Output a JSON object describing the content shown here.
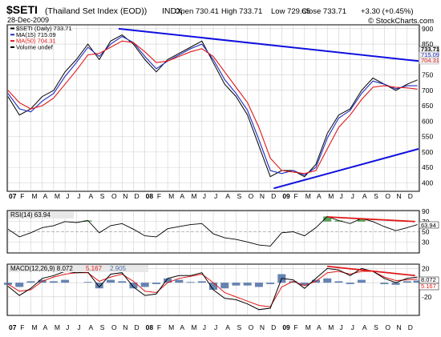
{
  "header": {
    "symbol": "$SETI",
    "name": "(Thailand Set Index (EOD))",
    "exchange": "INDX",
    "date": "28-Dec-2009",
    "brand": "© StockCharts.com",
    "ohlc": [
      {
        "label": "Open",
        "value": "730.41"
      },
      {
        "label": "High",
        "value": "733.71"
      },
      {
        "label": "Low",
        "value": "729.65"
      },
      {
        "label": "Close",
        "value": "733.71"
      },
      {
        "label": "Chg",
        "value": "+3.30 (+0.45%)"
      }
    ]
  },
  "colors": {
    "price": "#000000",
    "ma15": "#1f2fbf",
    "ma50": "#e01818",
    "trendline": "#1010e0",
    "divergence": "#e01818",
    "rsi_fill": "#2e8b2e",
    "macd_hist": "#4a6fa5",
    "grid": "#cfcfcf",
    "label_box": "#e8e8e8"
  },
  "chart_data": [
    {
      "type": "line",
      "panel": "price",
      "legend": [
        "$SETI (Daily) 733.71",
        "MA(15) 715.09",
        "MA(50) 704.31",
        "Volume undef"
      ],
      "ylim": [
        375,
        910
      ],
      "yticks": [
        400,
        450,
        500,
        550,
        600,
        650,
        700,
        750,
        800,
        850,
        900
      ],
      "last_value_labels": [
        "733.71",
        "715.09",
        "704.31"
      ],
      "x_month_labels": [
        "07",
        "F",
        "M",
        "A",
        "M",
        "J",
        "J",
        "A",
        "S",
        "O",
        "N",
        "D",
        "08",
        "F",
        "M",
        "A",
        "M",
        "J",
        "J",
        "A",
        "S",
        "O",
        "N",
        "D",
        "09",
        "F",
        "M",
        "A",
        "M",
        "J",
        "J",
        "A",
        "S",
        "O",
        "N",
        "D"
      ],
      "series": [
        {
          "name": "$SETI (Daily)",
          "x": [
            0,
            1,
            2,
            3,
            4,
            5,
            6,
            7,
            8,
            9,
            10,
            11,
            12,
            13,
            14,
            15,
            16,
            17,
            18,
            19,
            20,
            21,
            22,
            23,
            24,
            25,
            26,
            27,
            28,
            29,
            30,
            31,
            32,
            33,
            34,
            35,
            35.9
          ],
          "values": [
            680,
            620,
            640,
            680,
            700,
            760,
            800,
            850,
            800,
            860,
            880,
            850,
            800,
            760,
            800,
            820,
            840,
            860,
            790,
            720,
            680,
            620,
            520,
            420,
            440,
            440,
            420,
            460,
            560,
            620,
            640,
            700,
            740,
            720,
            700,
            720,
            734
          ]
        },
        {
          "name": "MA(15)",
          "x": [
            0,
            1,
            2,
            3,
            4,
            5,
            6,
            7,
            8,
            9,
            10,
            11,
            12,
            13,
            14,
            15,
            16,
            17,
            18,
            19,
            20,
            21,
            22,
            23,
            24,
            25,
            26,
            27,
            28,
            29,
            30,
            31,
            32,
            33,
            34,
            35,
            35.9
          ],
          "values": [
            690,
            640,
            630,
            665,
            690,
            745,
            790,
            840,
            810,
            850,
            875,
            855,
            810,
            770,
            795,
            815,
            835,
            850,
            800,
            735,
            690,
            635,
            540,
            440,
            430,
            440,
            425,
            450,
            545,
            610,
            635,
            690,
            730,
            720,
            705,
            715,
            715
          ]
        },
        {
          "name": "MA(50)",
          "x": [
            0,
            1,
            2,
            3,
            4,
            5,
            6,
            7,
            8,
            9,
            10,
            11,
            12,
            13,
            14,
            15,
            16,
            17,
            18,
            19,
            20,
            21,
            22,
            23,
            24,
            25,
            26,
            27,
            28,
            29,
            30,
            31,
            32,
            33,
            34,
            35,
            35.9
          ],
          "values": [
            700,
            660,
            640,
            650,
            675,
            720,
            765,
            815,
            820,
            840,
            860,
            855,
            825,
            790,
            795,
            810,
            825,
            835,
            810,
            760,
            710,
            660,
            580,
            480,
            440,
            435,
            430,
            440,
            510,
            580,
            620,
            670,
            710,
            715,
            710,
            708,
            704
          ]
        }
      ],
      "trendlines": [
        {
          "name": "resistance",
          "from": [
            9.7,
            900
          ],
          "to": [
            36,
            795
          ]
        },
        {
          "name": "support",
          "from": [
            23.3,
            382
          ],
          "to": [
            36,
            510
          ]
        }
      ]
    },
    {
      "type": "line",
      "panel": "rsi",
      "legend": "RSI(14) 63.94",
      "ylim": [
        10,
        90
      ],
      "yticks": [
        30,
        50,
        70,
        90
      ],
      "last_value_label": "63.94",
      "x": [
        0,
        1,
        2,
        3,
        4,
        5,
        6,
        7,
        8,
        9,
        10,
        11,
        12,
        13,
        14,
        15,
        16,
        17,
        18,
        19,
        20,
        21,
        22,
        23,
        24,
        25,
        26,
        27,
        28,
        29,
        30,
        31,
        32,
        33,
        34,
        35,
        35.9
      ],
      "values": [
        55,
        40,
        48,
        58,
        62,
        70,
        68,
        72,
        48,
        62,
        66,
        55,
        42,
        40,
        56,
        60,
        64,
        66,
        46,
        38,
        35,
        30,
        24,
        22,
        48,
        50,
        42,
        58,
        80,
        72,
        66,
        76,
        70,
        60,
        52,
        58,
        64
      ],
      "divergence": {
        "from": [
          28,
          79
        ],
        "to": [
          35.7,
          70
        ]
      }
    },
    {
      "type": "line",
      "panel": "macd",
      "legend": [
        {
          "text": "MACD(12,26,9)",
          "value": "8.072"
        },
        {
          "text": "",
          "value": "5.167"
        },
        {
          "text": "",
          "value": "2.905"
        }
      ],
      "ylim": [
        -45,
        25
      ],
      "yticks": [
        -20,
        0,
        20
      ],
      "last_value_labels": [
        "8.072",
        "5.167"
      ],
      "x": [
        0,
        1,
        2,
        3,
        4,
        5,
        6,
        7,
        8,
        9,
        10,
        11,
        12,
        13,
        14,
        15,
        16,
        17,
        18,
        19,
        20,
        21,
        22,
        23,
        24,
        25,
        26,
        27,
        28,
        29,
        30,
        31,
        32,
        33,
        34,
        35,
        35.9
      ],
      "macd": [
        -5,
        -18,
        -8,
        6,
        10,
        16,
        14,
        15,
        -6,
        12,
        14,
        -6,
        -18,
        -16,
        6,
        10,
        10,
        14,
        -10,
        -22,
        -24,
        -30,
        -38,
        -36,
        6,
        4,
        -8,
        6,
        20,
        18,
        10,
        20,
        16,
        6,
        0,
        6,
        8
      ],
      "signal": [
        -2,
        -12,
        -10,
        2,
        8,
        12,
        14,
        14,
        2,
        8,
        12,
        2,
        -12,
        -14,
        0,
        6,
        9,
        12,
        0,
        -14,
        -20,
        -26,
        -32,
        -34,
        -6,
        2,
        -4,
        2,
        14,
        16,
        12,
        16,
        16,
        8,
        3,
        4,
        5
      ],
      "histogram": [
        -3,
        -6,
        2,
        4,
        2,
        4,
        0,
        1,
        -8,
        4,
        2,
        -8,
        -6,
        -2,
        6,
        4,
        1,
        2,
        -10,
        -8,
        -4,
        -4,
        -6,
        -2,
        12,
        2,
        -4,
        4,
        6,
        2,
        -2,
        4,
        0,
        -2,
        -3,
        2,
        3
      ],
      "divergence": {
        "from": [
          28,
          23
        ],
        "to": [
          35.7,
          10
        ]
      }
    }
  ]
}
